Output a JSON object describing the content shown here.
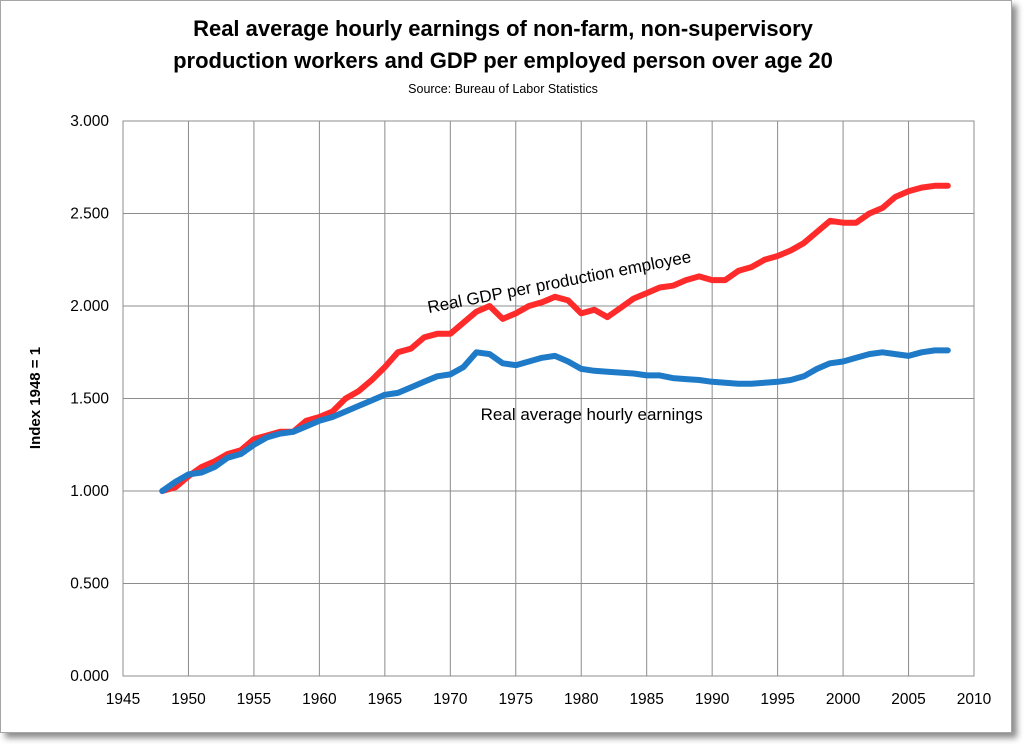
{
  "chart_data": {
    "type": "line",
    "title": [
      "Real average hourly earnings of non-farm, non-supervisory",
      "production workers and GDP per employed person over age 20"
    ],
    "subtitle": "Source:  Bureau of Labor Statistics",
    "xlabel": "",
    "ylabel": "Index 1948 = 1",
    "xlim": [
      1945,
      2010
    ],
    "ylim": [
      0,
      3
    ],
    "x_ticks": [
      1945,
      1950,
      1955,
      1960,
      1965,
      1970,
      1975,
      1980,
      1985,
      1990,
      1995,
      2000,
      2005,
      2010
    ],
    "y_ticks": [
      0,
      0.5,
      1,
      1.5,
      2,
      2.5,
      3
    ],
    "y_tick_labels": [
      "0.000",
      "0.500",
      "1.000",
      "1.500",
      "2.000",
      "2.500",
      "3.000"
    ],
    "grid": true,
    "legend": "none",
    "series": [
      {
        "color": "#ff2a2a",
        "x": [
          1948,
          1949,
          1950,
          1951,
          1952,
          1953,
          1954,
          1955,
          1956,
          1957,
          1958,
          1959,
          1960,
          1961,
          1962,
          1963,
          1964,
          1965,
          1966,
          1967,
          1968,
          1969,
          1970,
          1971,
          1972,
          1973,
          1974,
          1975,
          1976,
          1977,
          1978,
          1979,
          1980,
          1981,
          1982,
          1983,
          1984,
          1985,
          1986,
          1987,
          1988,
          1989,
          1990,
          1991,
          1992,
          1993,
          1994,
          1995,
          1996,
          1997,
          1998,
          1999,
          2000,
          2001,
          2002,
          2003,
          2004,
          2005,
          2006,
          2007,
          2008
        ],
        "values": [
          1.0,
          1.02,
          1.08,
          1.13,
          1.16,
          1.2,
          1.22,
          1.28,
          1.3,
          1.32,
          1.32,
          1.38,
          1.4,
          1.43,
          1.5,
          1.54,
          1.6,
          1.67,
          1.75,
          1.77,
          1.83,
          1.85,
          1.85,
          1.91,
          1.97,
          2.0,
          1.93,
          1.96,
          2.0,
          2.02,
          2.05,
          2.03,
          1.96,
          1.98,
          1.94,
          1.99,
          2.04,
          2.07,
          2.1,
          2.11,
          2.14,
          2.16,
          2.14,
          2.14,
          2.19,
          2.21,
          2.25,
          2.27,
          2.3,
          2.34,
          2.4,
          2.46,
          2.45,
          2.45,
          2.5,
          2.53,
          2.59,
          2.62,
          2.64,
          2.65,
          2.65
        ]
      },
      {
        "color": "#1f7bc8",
        "x": [
          1948,
          1949,
          1950,
          1951,
          1952,
          1953,
          1954,
          1955,
          1956,
          1957,
          1958,
          1959,
          1960,
          1961,
          1962,
          1963,
          1964,
          1965,
          1966,
          1967,
          1968,
          1969,
          1970,
          1971,
          1972,
          1973,
          1974,
          1975,
          1976,
          1977,
          1978,
          1979,
          1980,
          1981,
          1982,
          1983,
          1984,
          1985,
          1986,
          1987,
          1988,
          1989,
          1990,
          1991,
          1992,
          1993,
          1994,
          1995,
          1996,
          1997,
          1998,
          1999,
          2000,
          2001,
          2002,
          2003,
          2004,
          2005,
          2006,
          2007,
          2008
        ],
        "values": [
          1.0,
          1.05,
          1.09,
          1.1,
          1.13,
          1.18,
          1.2,
          1.25,
          1.29,
          1.31,
          1.32,
          1.35,
          1.38,
          1.4,
          1.43,
          1.46,
          1.49,
          1.52,
          1.53,
          1.56,
          1.59,
          1.62,
          1.63,
          1.67,
          1.75,
          1.74,
          1.69,
          1.68,
          1.7,
          1.72,
          1.73,
          1.7,
          1.66,
          1.65,
          1.645,
          1.64,
          1.635,
          1.625,
          1.625,
          1.61,
          1.605,
          1.6,
          1.59,
          1.585,
          1.58,
          1.58,
          1.585,
          1.59,
          1.6,
          1.62,
          1.66,
          1.69,
          1.7,
          1.72,
          1.74,
          1.75,
          1.74,
          1.73,
          1.75,
          1.76,
          1.76
        ]
      }
    ],
    "annotations": [
      {
        "text": "Real GDP per production employee",
        "x": 1978.4,
        "y": 2.1,
        "rotate": -11
      },
      {
        "text": "Real average hourly earnings",
        "x": 1980.8,
        "y": 1.385,
        "rotate": 0
      }
    ]
  }
}
